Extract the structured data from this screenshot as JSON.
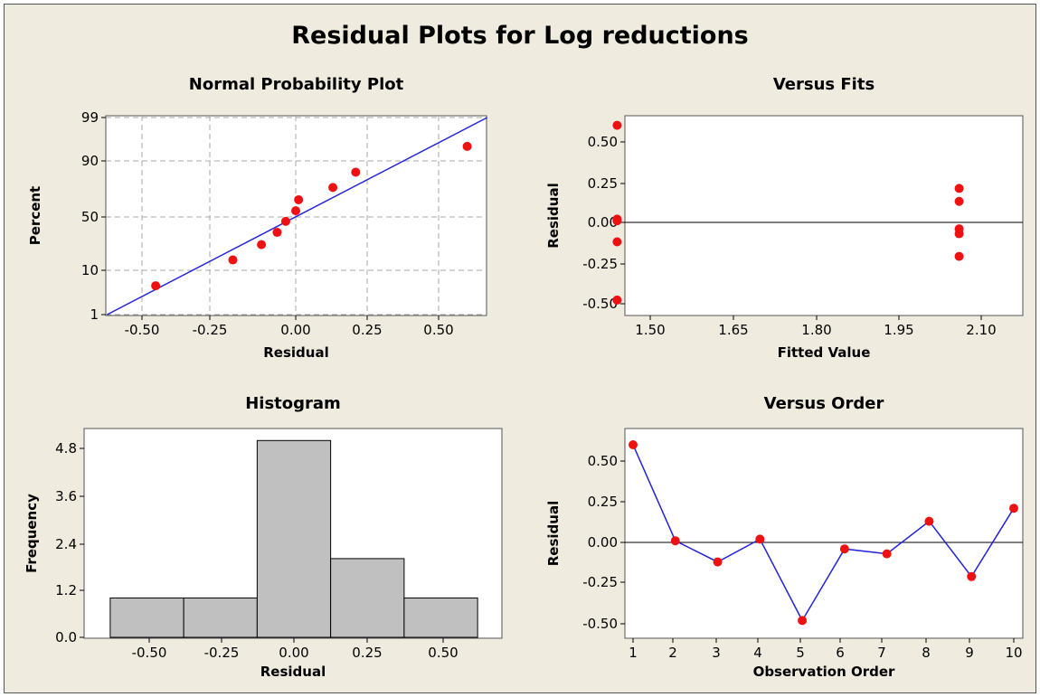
{
  "title": "Residual Plots for Log reductions",
  "colors": {
    "point": "#ee1111",
    "line": "#2222dd",
    "bar": "#c0c0c0",
    "frame_bg": "#efebde",
    "grid": "#aaaaaa"
  },
  "chart_data": [
    {
      "type": "scatter",
      "title": "Normal Probability Plot",
      "xlabel": "Residual",
      "ylabel": "Percent",
      "grid": true,
      "xlim": [
        -0.7,
        0.7
      ],
      "xticks": [
        "-0.50",
        "-0.25",
        "0.00",
        "0.25",
        "0.50"
      ],
      "yticks": [
        "1",
        "10",
        "50",
        "90",
        "99"
      ],
      "ytick_values": [
        1,
        10,
        50,
        90,
        99
      ],
      "points": [
        {
          "x": -0.49,
          "y": 5
        },
        {
          "x": -0.22,
          "y": 15
        },
        {
          "x": -0.12,
          "y": 25
        },
        {
          "x": -0.065,
          "y": 35
        },
        {
          "x": -0.035,
          "y": 45
        },
        {
          "x": 0.0,
          "y": 55
        },
        {
          "x": 0.01,
          "y": 65
        },
        {
          "x": 0.13,
          "y": 75
        },
        {
          "x": 0.21,
          "y": 85
        },
        {
          "x": 0.6,
          "y": 95
        }
      ],
      "fit_line": [
        {
          "x": -0.66,
          "y": 1
        },
        {
          "x": 0.67,
          "y": 99
        }
      ]
    },
    {
      "type": "scatter",
      "title": "Versus Fits",
      "xlabel": "Fitted Value",
      "ylabel": "Residual",
      "xlim": [
        1.41,
        2.11
      ],
      "ylim": [
        -0.58,
        0.68
      ],
      "xticks": [
        "1.50",
        "1.65",
        "1.80",
        "1.95",
        "2.10"
      ],
      "yticks": [
        "-0.50",
        "-0.25",
        "0.00",
        "0.25",
        "0.50"
      ],
      "reference_line": 0,
      "points": [
        {
          "x": 1.44,
          "y": 0.6
        },
        {
          "x": 1.44,
          "y": 0.02
        },
        {
          "x": 1.44,
          "y": 0.01
        },
        {
          "x": 1.44,
          "y": -0.12
        },
        {
          "x": 1.44,
          "y": -0.48
        },
        {
          "x": 2.06,
          "y": 0.21
        },
        {
          "x": 2.06,
          "y": 0.13
        },
        {
          "x": 2.06,
          "y": -0.04
        },
        {
          "x": 2.06,
          "y": -0.07
        },
        {
          "x": 2.06,
          "y": -0.21
        }
      ]
    },
    {
      "type": "bar",
      "title": "Histogram",
      "xlabel": "Residual",
      "ylabel": "Frequency",
      "xlim": [
        -0.78,
        0.78
      ],
      "ylim": [
        0,
        5.4
      ],
      "xticks": [
        "-0.50",
        "-0.25",
        "0.00",
        "0.25",
        "0.50"
      ],
      "yticks": [
        "0.0",
        "1.2",
        "2.4",
        "3.6",
        "4.8"
      ],
      "bins": [
        {
          "from": -0.625,
          "to": -0.375,
          "value": 1
        },
        {
          "from": -0.375,
          "to": -0.125,
          "value": 1
        },
        {
          "from": -0.125,
          "to": 0.125,
          "value": 5
        },
        {
          "from": 0.125,
          "to": 0.375,
          "value": 2
        },
        {
          "from": 0.375,
          "to": 0.625,
          "value": 1
        }
      ]
    },
    {
      "type": "line",
      "title": "Versus Order",
      "xlabel": "Observation Order",
      "ylabel": "Residual",
      "xlim": [
        0.8,
        10.2
      ],
      "ylim": [
        -0.57,
        0.66
      ],
      "xticks": [
        "1",
        "2",
        "3",
        "4",
        "5",
        "6",
        "7",
        "8",
        "9",
        "10"
      ],
      "yticks": [
        "-0.50",
        "-0.25",
        "0.00",
        "0.25",
        "0.50"
      ],
      "reference_line": 0,
      "x": [
        1,
        2,
        3,
        4,
        5,
        6,
        7,
        8,
        9,
        10
      ],
      "y": [
        0.6,
        0.01,
        -0.12,
        0.02,
        -0.48,
        -0.04,
        -0.07,
        0.13,
        -0.21,
        0.21
      ]
    }
  ]
}
